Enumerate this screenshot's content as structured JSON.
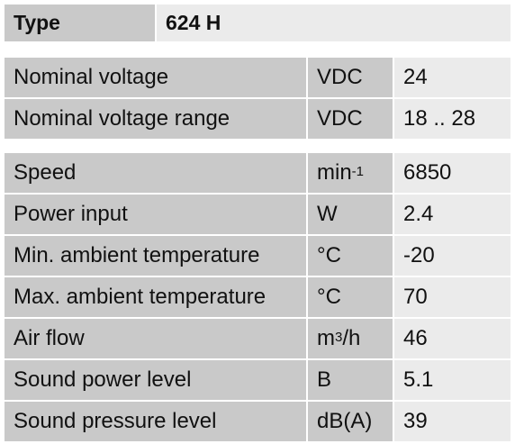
{
  "header": {
    "label": "Type",
    "value": "624 H"
  },
  "groups": [
    {
      "rows": [
        {
          "label": "Nominal voltage",
          "unit": "VDC",
          "value": 24
        },
        {
          "label": "Nominal voltage range",
          "unit": "VDC",
          "value": "18 .. 28"
        }
      ]
    },
    {
      "rows": [
        {
          "label": "Speed",
          "unit": {
            "text": "min",
            "sup": "-1"
          },
          "value": 6850
        },
        {
          "label": "Power input",
          "unit": "W",
          "value": 2.4
        },
        {
          "label": "Min. ambient temperature",
          "unit": "°C",
          "value": -20
        },
        {
          "label": "Max. ambient temperature",
          "unit": "°C",
          "value": 70
        },
        {
          "label": "Air flow",
          "unit": {
            "text": "m",
            "sup": "3",
            "rest": "/h"
          },
          "value": 46
        },
        {
          "label": "Sound power level",
          "unit": "B",
          "value": 5.1
        },
        {
          "label": "Sound pressure level",
          "unit": "dB(A)",
          "value": 39
        }
      ]
    }
  ]
}
